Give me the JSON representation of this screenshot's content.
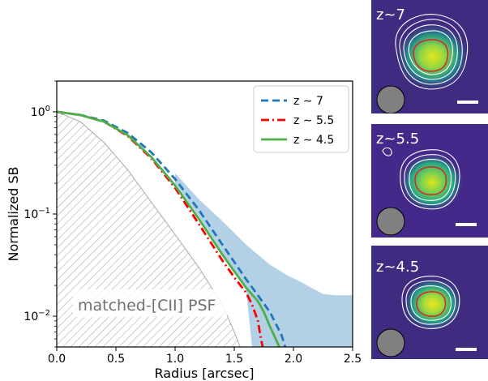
{
  "chart_data": [
    {
      "type": "line",
      "y_scale": "log",
      "xlabel": "Radius [arcsec]",
      "ylabel": "Normalized SB",
      "xlim": [
        0.0,
        2.5
      ],
      "ylim": [
        0.005,
        2.0
      ],
      "x_ticks": [
        "0.0",
        "0.5",
        "1.0",
        "1.5",
        "2.0",
        "2.5"
      ],
      "y_ticks": [
        {
          "base": "10",
          "exp": "0",
          "value": 1
        },
        {
          "base": "10",
          "exp": "−1",
          "value": 0.1
        },
        {
          "base": "10",
          "exp": "−2",
          "value": 0.01
        }
      ],
      "legend_position": "top-right",
      "annotation": "matched-[CII] PSF",
      "psf": {
        "x": [
          0,
          0.2,
          0.4,
          0.6,
          0.8,
          1.0,
          1.2,
          1.4,
          1.5,
          1.55
        ],
        "y": [
          1.0,
          0.8,
          0.5,
          0.27,
          0.13,
          0.063,
          0.03,
          0.013,
          0.007,
          0.005
        ]
      },
      "series": [
        {
          "name": "z ∼ 7",
          "color": "#1f77b4",
          "style": "dashed",
          "x": [
            0,
            0.2,
            0.4,
            0.6,
            0.8,
            1.0,
            1.2,
            1.4,
            1.6,
            1.7,
            1.8,
            1.85,
            1.9,
            1.93
          ],
          "y": [
            1.0,
            0.93,
            0.82,
            0.62,
            0.4,
            0.22,
            0.11,
            0.05,
            0.023,
            0.016,
            0.011,
            0.0085,
            0.0065,
            0.005
          ],
          "band_lower_x": [
            1.0,
            1.2,
            1.4,
            1.6,
            1.65
          ],
          "band_lower_y": [
            0.2,
            0.095,
            0.042,
            0.018,
            0.005
          ],
          "band_upper_x": [
            1.0,
            1.2,
            1.4,
            1.6,
            1.8,
            1.95,
            2.05,
            2.15,
            2.25,
            2.35,
            2.5
          ],
          "band_upper_y": [
            0.25,
            0.14,
            0.085,
            0.05,
            0.032,
            0.025,
            0.022,
            0.019,
            0.0165,
            0.016,
            0.016
          ]
        },
        {
          "name": "z ∼ 5.5",
          "color": "#ff0000",
          "style": "dashdot",
          "x": [
            0,
            0.2,
            0.4,
            0.6,
            0.8,
            1.0,
            1.2,
            1.4,
            1.5,
            1.6,
            1.65,
            1.7,
            1.72,
            1.74
          ],
          "y": [
            1.0,
            0.93,
            0.8,
            0.58,
            0.35,
            0.18,
            0.08,
            0.035,
            0.024,
            0.017,
            0.013,
            0.009,
            0.0065,
            0.005
          ]
        },
        {
          "name": "z ∼ 4.5",
          "color": "#4daf4a",
          "style": "solid",
          "x": [
            0,
            0.2,
            0.4,
            0.6,
            0.8,
            1.0,
            1.2,
            1.4,
            1.6,
            1.7,
            1.75,
            1.8,
            1.85,
            1.88
          ],
          "y": [
            1.0,
            0.93,
            0.8,
            0.59,
            0.36,
            0.19,
            0.09,
            0.04,
            0.019,
            0.014,
            0.011,
            0.008,
            0.006,
            0.005
          ]
        }
      ]
    }
  ],
  "panels": [
    {
      "label": "z~7",
      "blob_color": "#c8e020"
    },
    {
      "label": "z~5.5",
      "blob_color": "#b8de29"
    },
    {
      "label": "z~4.5",
      "blob_color": "#d0e11c"
    }
  ],
  "colors": {
    "background_panel": "#3e2a7e",
    "psf_beam": "#808080",
    "contour": "#ffffff",
    "inner_contour": "#d62728",
    "band": "#b3d1e6"
  }
}
